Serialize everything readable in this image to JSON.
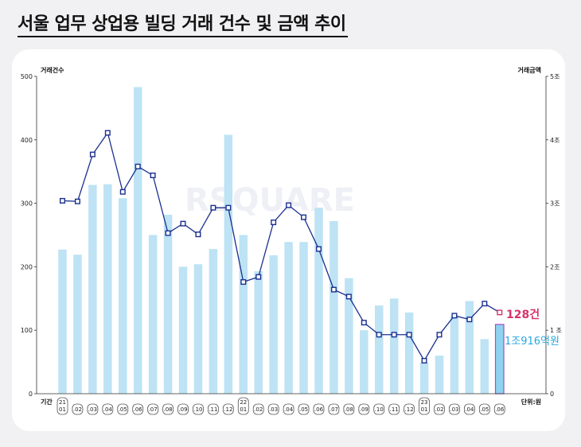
{
  "page": {
    "title": "서울 업무 상업용 빌딩 거래 건수 및 금액 추이"
  },
  "watermark": "RSQUARE",
  "chart_data": {
    "type": "bar+line",
    "left_axis_title": "거래건수",
    "right_axis_title": "거래금액",
    "x_axis_title": "기간",
    "unit_note": "단위:원",
    "left_ticks": [
      "0",
      "100",
      "200",
      "300",
      "400",
      "500"
    ],
    "right_ticks": [
      "0",
      "1 조",
      "2조",
      "3조",
      "4조",
      "5조"
    ],
    "ylim_left": [
      0,
      500
    ],
    "ylim_right": [
      0,
      5
    ],
    "categories": [
      {
        "year": "21",
        "month": "01"
      },
      {
        "year": "",
        "month": ".02"
      },
      {
        "year": "",
        "month": ".03"
      },
      {
        "year": "",
        "month": ".04"
      },
      {
        "year": "",
        "month": ".05"
      },
      {
        "year": "",
        "month": ".06"
      },
      {
        "year": "",
        "month": ".07"
      },
      {
        "year": "",
        "month": ".08"
      },
      {
        "year": "",
        "month": ".09"
      },
      {
        "year": "",
        "month": ".10"
      },
      {
        "year": "",
        "month": ".11"
      },
      {
        "year": "",
        "month": ".12"
      },
      {
        "year": "22",
        "month": "01"
      },
      {
        "year": "",
        "month": ".02"
      },
      {
        "year": "",
        "month": ".03"
      },
      {
        "year": "",
        "month": ".04"
      },
      {
        "year": "",
        "month": ".05"
      },
      {
        "year": "",
        "month": ".06"
      },
      {
        "year": "",
        "month": ".07"
      },
      {
        "year": "",
        "month": ".08"
      },
      {
        "year": "",
        "month": ".09"
      },
      {
        "year": "",
        "month": ".10"
      },
      {
        "year": "",
        "month": ".11"
      },
      {
        "year": "",
        "month": ".12"
      },
      {
        "year": "23",
        "month": "01"
      },
      {
        "year": "",
        "month": ".02"
      },
      {
        "year": "",
        "month": ".03"
      },
      {
        "year": "",
        "month": ".04"
      },
      {
        "year": "",
        "month": ".05"
      },
      {
        "year": "",
        "month": ".06"
      }
    ],
    "amount_trillion": [
      2.27,
      2.19,
      3.29,
      3.3,
      3.08,
      4.83,
      2.5,
      2.82,
      2.0,
      2.04,
      2.28,
      4.08,
      2.5,
      1.93,
      2.18,
      2.39,
      2.39,
      2.93,
      2.72,
      1.82,
      1.0,
      1.39,
      1.5,
      1.28,
      0.49,
      0.6,
      1.23,
      1.46,
      0.86,
      1.0916
    ],
    "count": [
      304,
      303,
      377,
      411,
      318,
      358,
      344,
      253,
      268,
      251,
      293,
      293,
      176,
      184,
      270,
      297,
      278,
      228,
      164,
      153,
      112,
      93,
      93,
      93,
      52,
      93,
      123,
      117,
      142,
      128
    ],
    "highlight_color": "#a84fc3",
    "bar_color": "#bde3f4",
    "line_color": "#1b2f8f",
    "callout_count": "128건",
    "callout_amount": "1조916억원"
  }
}
